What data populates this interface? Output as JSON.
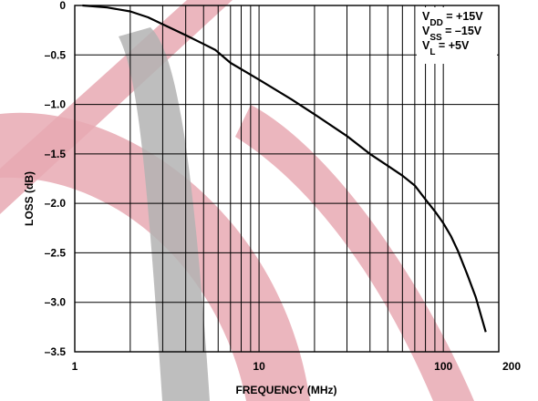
{
  "chart_data": {
    "type": "line",
    "xscale": "log",
    "xlim": [
      1,
      200
    ],
    "ylim": [
      -3.5,
      0
    ],
    "grid": true,
    "xlabel": "FREQUENCY (MHz)",
    "ylabel": "LOSS (dB)",
    "x_tick_labels": [
      "1",
      "10",
      "100",
      "200"
    ],
    "x_tick_values": [
      1,
      10,
      100,
      200
    ],
    "y_ticks": [
      0,
      -0.5,
      -1.0,
      -1.5,
      -2.0,
      -2.5,
      -3.0,
      -3.5
    ],
    "y_tick_labels": [
      "0",
      "–0.5",
      "–1.0",
      "–1.5",
      "–2.0",
      "–2.5",
      "–3.0",
      "–3.5"
    ],
    "legend_position": "top-right",
    "conditions": [
      {
        "symbol": "V",
        "sub": "DD",
        "value": " = +15V"
      },
      {
        "symbol": "V",
        "sub": "SS",
        "value": " = –15V"
      },
      {
        "symbol": "V",
        "sub": "L",
        "value": " = +5V"
      }
    ],
    "series": [
      {
        "x": [
          1.1,
          1.5,
          2.0,
          2.5,
          3.0,
          4.0,
          5.0,
          5.8,
          7.0,
          10,
          15,
          20,
          30,
          40,
          50,
          60,
          70,
          80,
          90,
          100,
          110,
          120,
          135,
          150,
          170
        ],
        "y": [
          0.0,
          -0.02,
          -0.06,
          -0.12,
          -0.19,
          -0.3,
          -0.39,
          -0.45,
          -0.58,
          -0.75,
          -0.95,
          -1.1,
          -1.32,
          -1.5,
          -1.62,
          -1.72,
          -1.82,
          -1.96,
          -2.08,
          -2.2,
          -2.33,
          -2.48,
          -2.72,
          -2.95,
          -3.3
        ]
      }
    ],
    "colors": {
      "line": "#000000",
      "grid": "#000000",
      "background": "#ffffff",
      "watermark_red": "#e8a9b3",
      "watermark_gray": "#b3b3b3"
    }
  }
}
